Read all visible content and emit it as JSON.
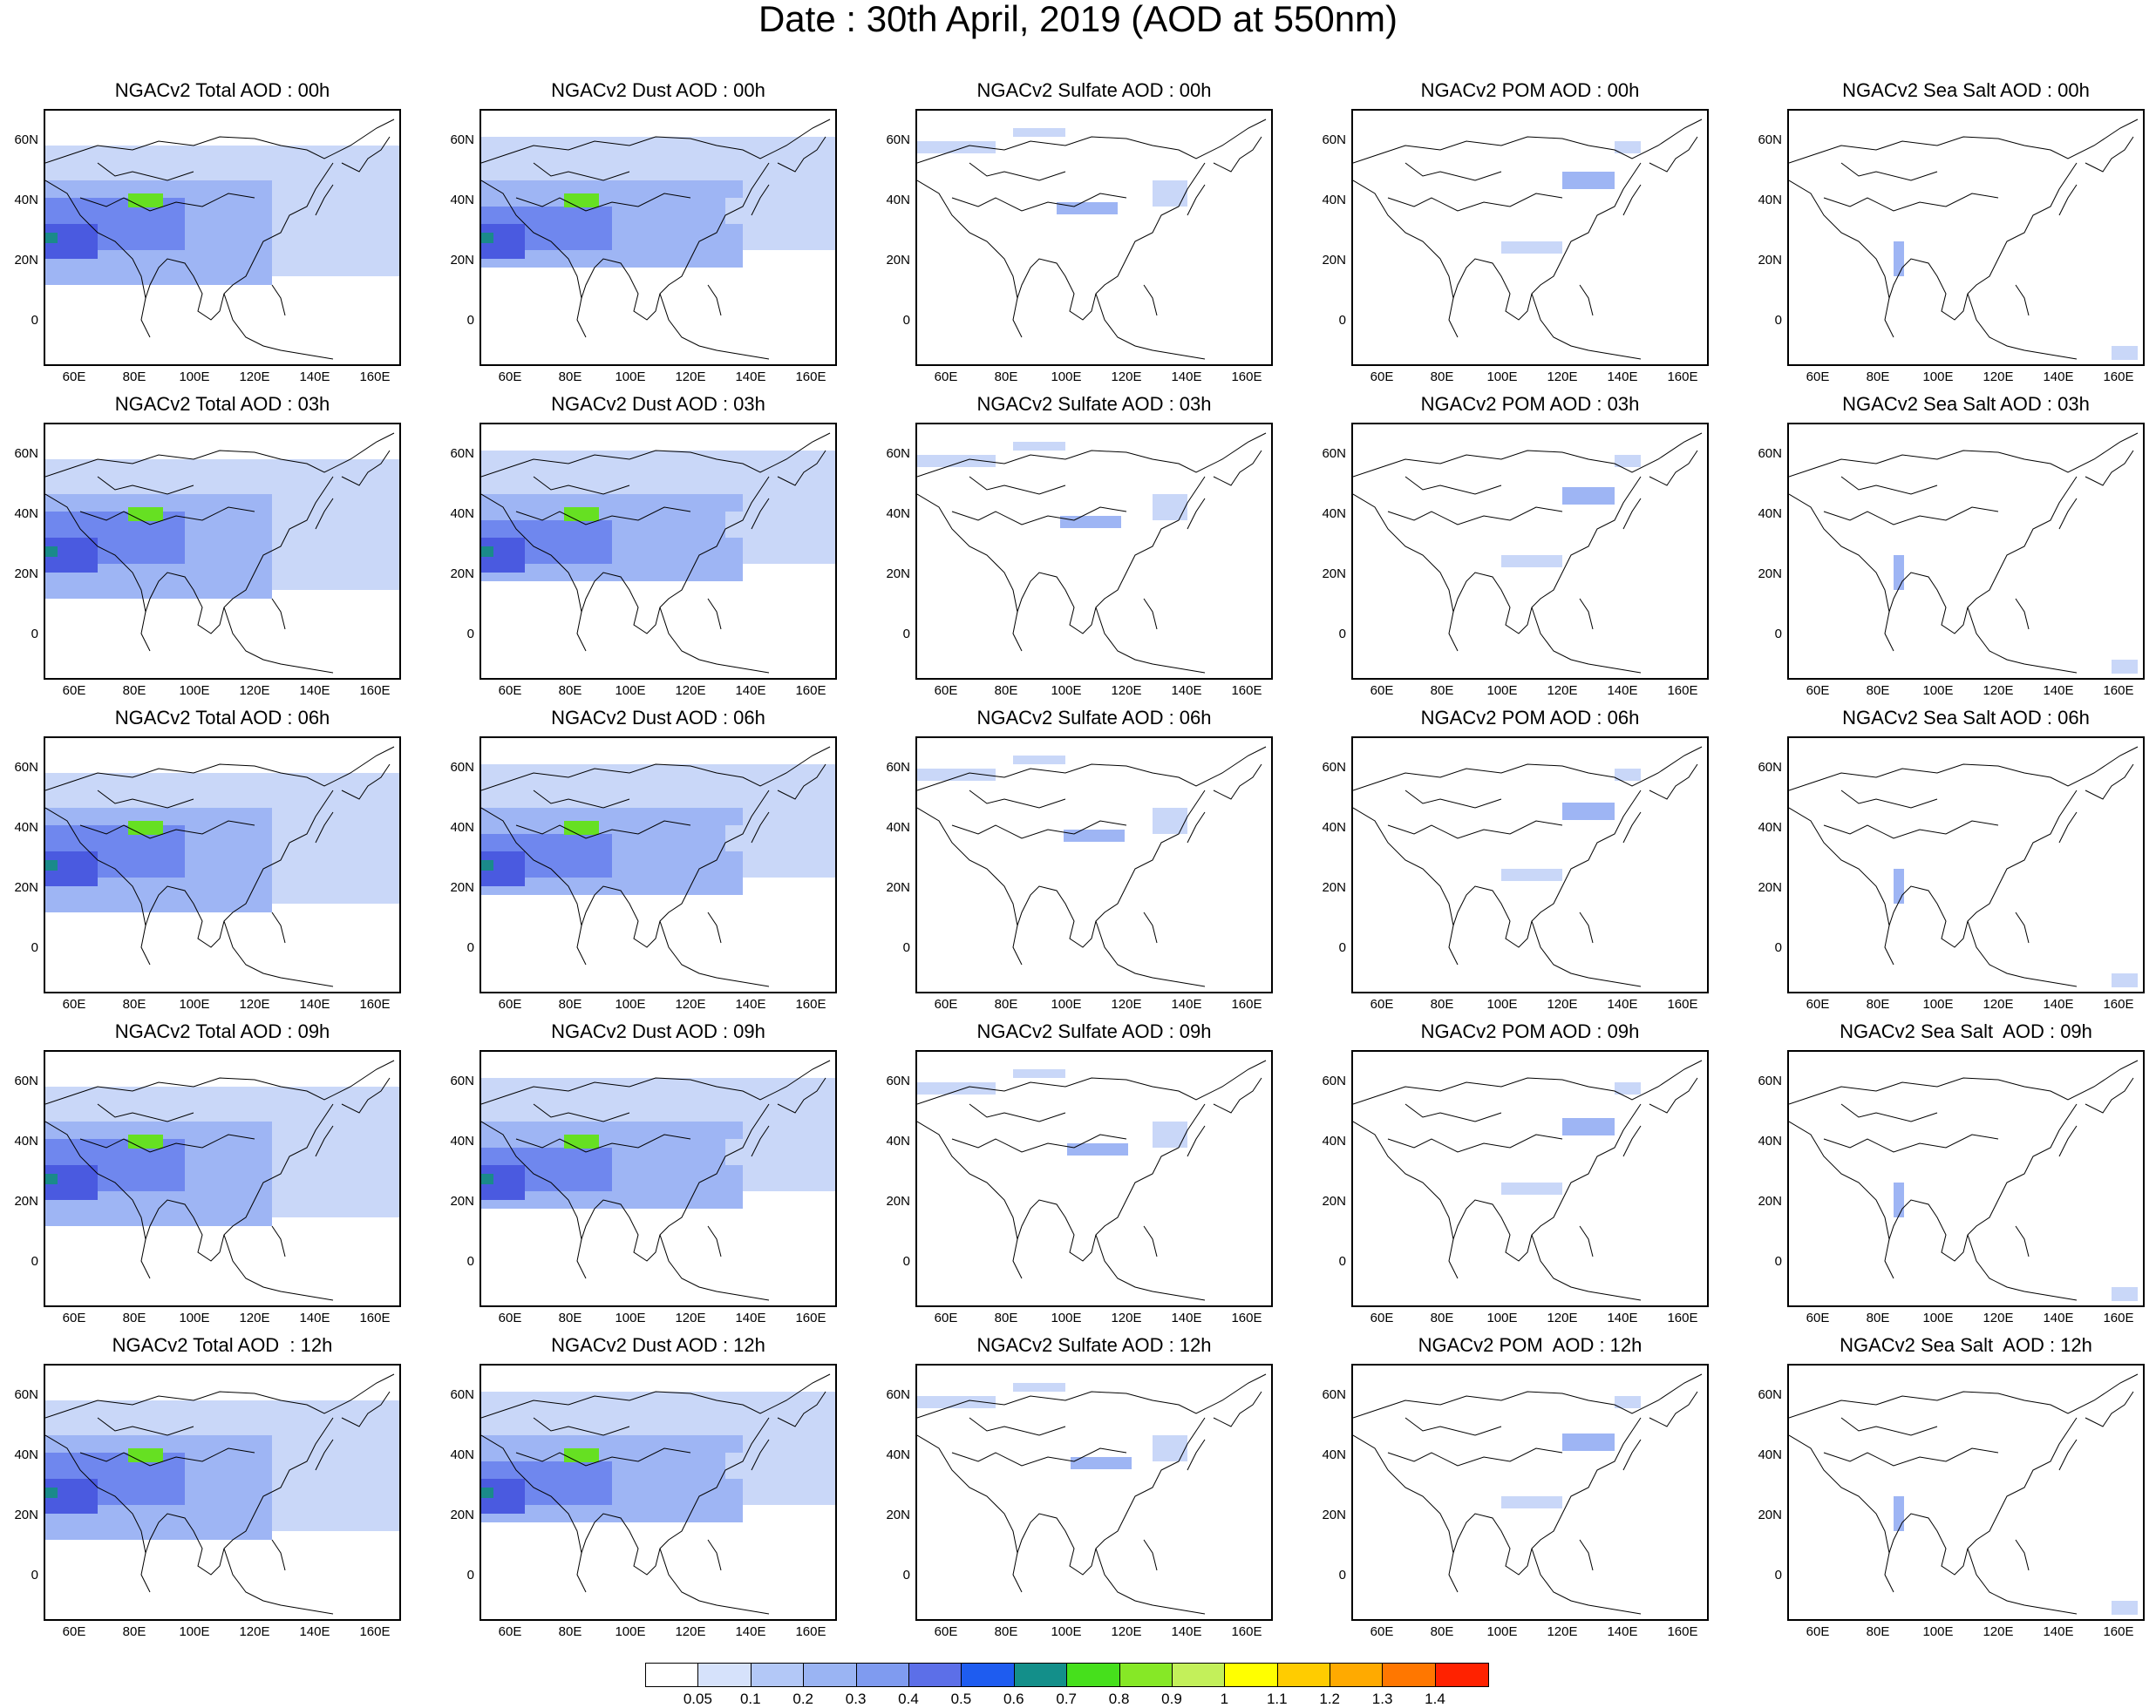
{
  "title": "Date : 30th April, 2019 (AOD at 550nm)",
  "columns": [
    {
      "id": "total",
      "times": [
        "NGACv2 Total AOD : 00h",
        "NGACv2 Total AOD : 03h",
        "NGACv2 Total AOD : 06h",
        "NGACv2 Total AOD : 09h",
        "NGACv2 Total AOD  : 12h"
      ]
    },
    {
      "id": "dust",
      "times": [
        "NGACv2 Dust AOD : 00h",
        "NGACv2 Dust AOD : 03h",
        "NGACv2 Dust AOD : 06h",
        "NGACv2 Dust AOD : 09h",
        "NGACv2 Dust AOD : 12h"
      ]
    },
    {
      "id": "sulfate",
      "times": [
        "NGACv2 Sulfate AOD : 00h",
        "NGACv2 Sulfate AOD : 03h",
        "NGACv2 Sulfate AOD : 06h",
        "NGACv2 Sulfate AOD : 09h",
        "NGACv2 Sulfate AOD : 12h"
      ]
    },
    {
      "id": "pom",
      "times": [
        "NGACv2 POM AOD : 00h",
        "NGACv2 POM AOD : 03h",
        "NGACv2 POM AOD : 06h",
        "NGACv2 POM AOD : 09h",
        "NGACv2 POM  AOD : 12h"
      ]
    },
    {
      "id": "seasalt",
      "times": [
        "NGACv2 Sea Salt AOD : 00h",
        "NGACv2 Sea Salt AOD : 03h",
        "NGACv2 Sea Salt AOD : 06h",
        "NGACv2 Sea Salt  AOD : 09h",
        "NGACv2 Sea Salt  AOD : 12h"
      ]
    }
  ],
  "lat_ticks": [
    "60N",
    "40N",
    "20N",
    "0"
  ],
  "lon_ticks": [
    "60E",
    "80E",
    "100E",
    "120E",
    "140E",
    "160E"
  ],
  "colorbar": {
    "colors": [
      "#ffffff",
      "#d6e2fb",
      "#b3c8f7",
      "#9ab4f3",
      "#7f9bf0",
      "#5c6fe8",
      "#1e5cf0",
      "#138f8a",
      "#46e01c",
      "#86e826",
      "#c3f05a",
      "#ffff00",
      "#ffcc00",
      "#ffaa00",
      "#ff7700",
      "#ff2200"
    ],
    "labels": [
      "0.05",
      "0.1",
      "0.2",
      "0.3",
      "0.4",
      "0.5",
      "0.6",
      "0.7",
      "0.8",
      "0.9",
      "1",
      "1.1",
      "1.2",
      "1.3",
      "1.4"
    ]
  },
  "colors": {
    "coast": "#000000",
    "light_blue": "#c9d7f8",
    "mid_blue": "#9eb5f4",
    "blue": "#6f87ee",
    "deep_blue": "#4a5ae0",
    "teal": "#1a8a8a",
    "green": "#66e022"
  }
}
